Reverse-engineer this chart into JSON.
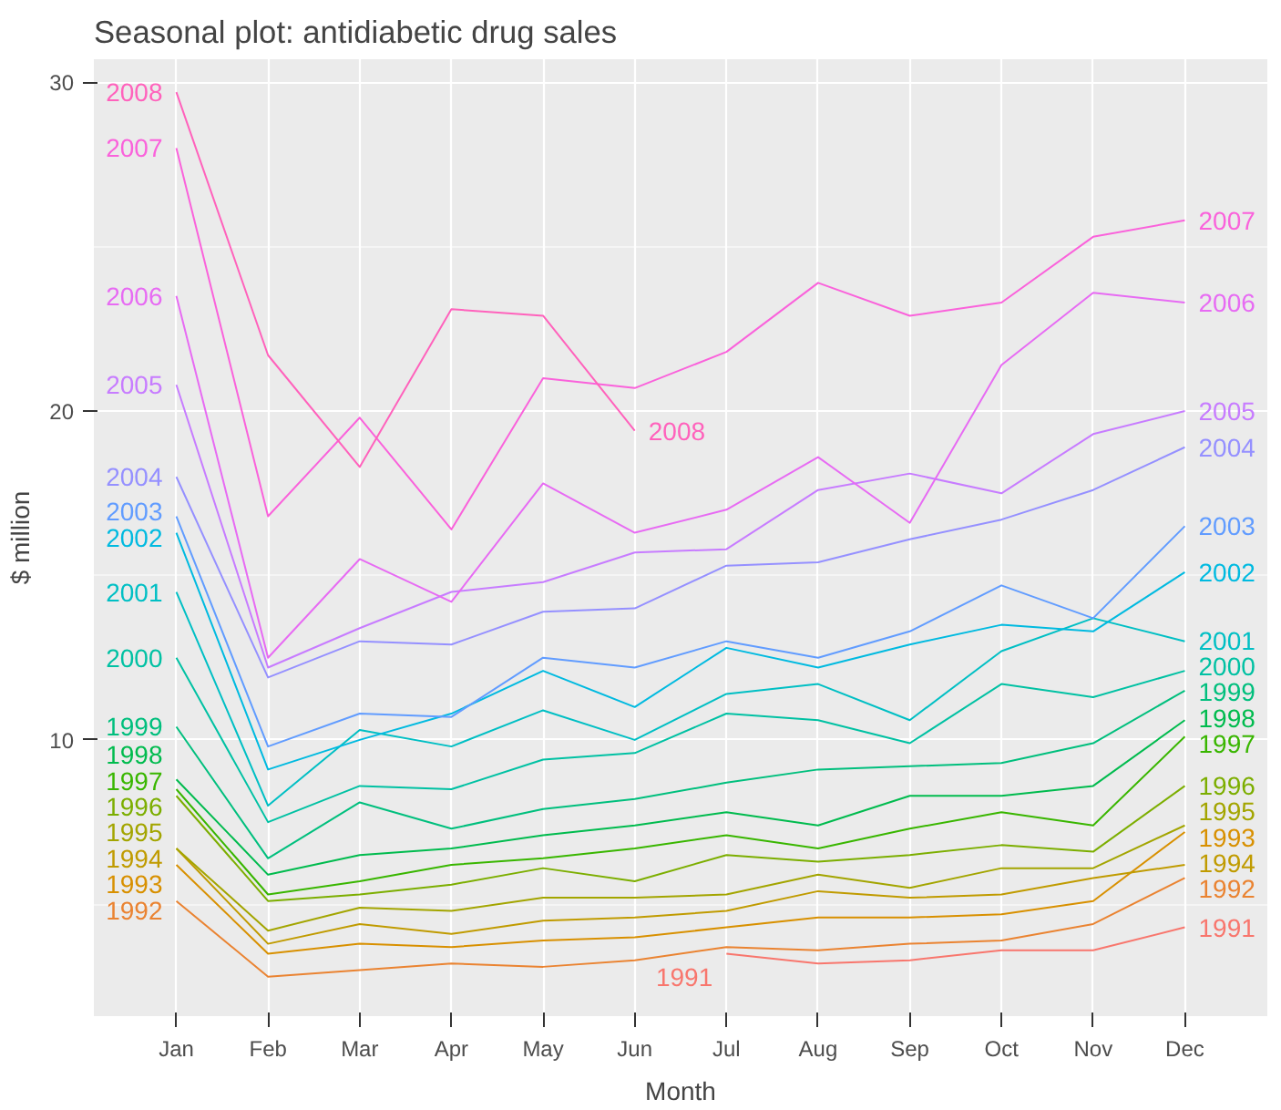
{
  "chart_data": {
    "type": "line",
    "title": "Seasonal plot: antidiabetic drug sales",
    "xlabel": "Month",
    "ylabel": "$ million",
    "categories": [
      "Jan",
      "Feb",
      "Mar",
      "Apr",
      "May",
      "Jun",
      "Jul",
      "Aug",
      "Sep",
      "Oct",
      "Nov",
      "Dec"
    ],
    "ylim": [
      1.6,
      30.7
    ],
    "yticks": [
      10,
      20,
      30
    ],
    "grid": true,
    "marker": "none",
    "line_style": "solid",
    "series": [
      {
        "name": "1991",
        "color": "#F8766D",
        "values": [
          null,
          null,
          null,
          null,
          null,
          null,
          3.5,
          3.2,
          3.3,
          3.6,
          3.6,
          4.3
        ]
      },
      {
        "name": "1992",
        "color": "#EA8331",
        "values": [
          5.1,
          2.8,
          3.0,
          3.2,
          3.1,
          3.3,
          3.7,
          3.6,
          3.8,
          3.9,
          4.4,
          5.8
        ]
      },
      {
        "name": "1993",
        "color": "#D89000",
        "values": [
          6.2,
          3.5,
          3.8,
          3.7,
          3.9,
          4.0,
          4.3,
          4.6,
          4.6,
          4.7,
          5.1,
          7.2
        ]
      },
      {
        "name": "1994",
        "color": "#C09B00",
        "values": [
          6.7,
          3.8,
          4.4,
          4.1,
          4.5,
          4.6,
          4.8,
          5.4,
          5.2,
          5.3,
          5.8,
          6.2
        ]
      },
      {
        "name": "1995",
        "color": "#A3A500",
        "values": [
          6.7,
          4.2,
          4.9,
          4.8,
          5.2,
          5.2,
          5.3,
          5.9,
          5.5,
          6.1,
          6.1,
          7.4
        ]
      },
      {
        "name": "1996",
        "color": "#7CAE00",
        "values": [
          8.3,
          5.1,
          5.3,
          5.6,
          6.1,
          5.7,
          6.5,
          6.3,
          6.5,
          6.8,
          6.6,
          8.6
        ]
      },
      {
        "name": "1997",
        "color": "#39B600",
        "values": [
          8.5,
          5.3,
          5.7,
          6.2,
          6.4,
          6.7,
          7.1,
          6.7,
          7.3,
          7.8,
          7.4,
          10.1
        ]
      },
      {
        "name": "1998",
        "color": "#00BB4E",
        "values": [
          8.8,
          5.9,
          6.5,
          6.7,
          7.1,
          7.4,
          7.8,
          7.4,
          8.3,
          8.3,
          8.6,
          10.6
        ]
      },
      {
        "name": "1999",
        "color": "#00BF7D",
        "values": [
          10.4,
          6.4,
          8.1,
          7.3,
          7.9,
          8.2,
          8.7,
          9.1,
          9.2,
          9.3,
          9.9,
          11.5
        ]
      },
      {
        "name": "2000",
        "color": "#00C1A3",
        "values": [
          12.5,
          7.5,
          8.6,
          8.5,
          9.4,
          9.6,
          10.8,
          10.6,
          9.9,
          11.7,
          11.3,
          12.1
        ]
      },
      {
        "name": "2001",
        "color": "#00BFC4",
        "values": [
          14.5,
          8.0,
          10.3,
          9.8,
          10.9,
          10.0,
          11.4,
          11.7,
          10.6,
          12.7,
          13.7,
          13.0
        ]
      },
      {
        "name": "2002",
        "color": "#00BAE0",
        "values": [
          16.3,
          9.1,
          10.0,
          10.8,
          12.1,
          11.0,
          12.8,
          12.2,
          12.9,
          13.5,
          13.3,
          15.1
        ]
      },
      {
        "name": "2003",
        "color": "#619CFF",
        "values": [
          16.8,
          9.8,
          10.8,
          10.7,
          12.5,
          12.2,
          13.0,
          12.5,
          13.3,
          14.7,
          13.7,
          16.5
        ]
      },
      {
        "name": "2004",
        "color": "#9590FF",
        "values": [
          18.0,
          11.9,
          13.0,
          12.9,
          13.9,
          14.0,
          15.3,
          15.4,
          16.1,
          16.7,
          17.6,
          18.9
        ]
      },
      {
        "name": "2005",
        "color": "#C77CFF",
        "values": [
          20.8,
          12.2,
          13.4,
          14.5,
          14.8,
          15.7,
          15.8,
          17.6,
          18.1,
          17.5,
          19.3,
          20.0
        ]
      },
      {
        "name": "2006",
        "color": "#E76BF3",
        "values": [
          23.5,
          12.5,
          15.5,
          14.2,
          17.8,
          16.3,
          17.0,
          18.6,
          16.6,
          21.4,
          23.6,
          23.3
        ]
      },
      {
        "name": "2007",
        "color": "#FA62DB",
        "values": [
          28.0,
          16.8,
          19.8,
          16.4,
          21.0,
          20.7,
          21.8,
          23.9,
          22.9,
          23.3,
          25.3,
          25.8
        ]
      },
      {
        "name": "2008",
        "color": "#FF62BC",
        "values": [
          29.7,
          21.7,
          18.3,
          23.1,
          22.9,
          19.4,
          null,
          null,
          null,
          null,
          null,
          null
        ]
      }
    ]
  }
}
